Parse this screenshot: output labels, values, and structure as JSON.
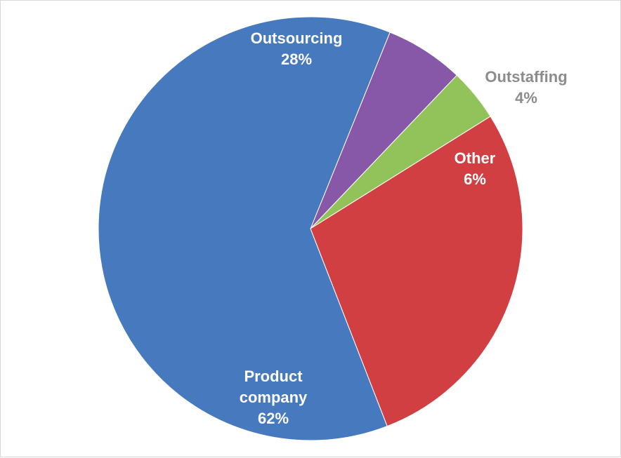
{
  "chart_data": {
    "type": "pie",
    "title": "",
    "slices": [
      {
        "name": "Outstaffing",
        "value": 4,
        "label": "Outstaffing",
        "percent_label": "4%",
        "color": "#92c35a",
        "label_color": "#8c8c8c"
      },
      {
        "name": "Other",
        "value": 6,
        "label": "Other",
        "percent_label": "6%",
        "color": "#8758a7",
        "label_color": "#ffffff"
      },
      {
        "name": "Product company",
        "value": 62,
        "label": "Product company",
        "percent_label": "62%",
        "color": "#4679bd",
        "label_color": "#ffffff"
      },
      {
        "name": "Outsourcing",
        "value": 28,
        "label": "Outsourcing",
        "percent_label": "28%",
        "color": "#d13f42",
        "label_color": "#ffffff"
      }
    ],
    "legend": "none",
    "border_color": "#d9d9d9"
  }
}
